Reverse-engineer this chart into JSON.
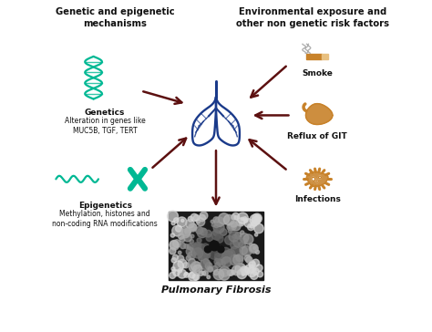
{
  "background_color": "#ffffff",
  "title_left": "Genetic and epigenetic\nmechanisms",
  "title_right": "Environmental exposure and\nother non genetic risk factors",
  "center_label": "Pulmonary Fibrosis",
  "genetics_bold": "Genetics",
  "genetics_text": "Alteration in genes like\nMUC5B, TGF, TERT",
  "epigenetics_bold": "Epigenetics",
  "epigenetics_text": "Methylation, histones and\nnon-coding RNA modifications",
  "right_labels": [
    "Smoke",
    "Reflux of GIT",
    "Infections"
  ],
  "arrow_color": "#5c1010",
  "dna_color": "#00b894",
  "right_icon_color": "#c8822a",
  "lung_color": "#1a3a8a",
  "text_color": "#111111"
}
